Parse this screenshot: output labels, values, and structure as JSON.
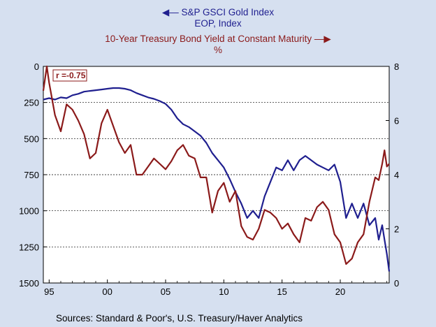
{
  "chart_data": {
    "type": "line",
    "legend": {
      "gold": {
        "name": "S&P GSCI Gold Index",
        "unit": "EOP, Index",
        "arrow": "left"
      },
      "yield": {
        "name": "10-Year Treasury Bond Yield at Constant Maturity",
        "unit": "%",
        "arrow": "right"
      }
    },
    "annotation": "r =-0.75",
    "source": "Sources:  Standard & Poor's, U.S. Treasury/Haver Analytics",
    "x_axis": {
      "range": [
        1994.5,
        2024.2
      ],
      "ticks": [
        1995,
        2000,
        2005,
        2010,
        2015,
        2020
      ],
      "tick_labels": [
        "95",
        "00",
        "05",
        "10",
        "15",
        "20"
      ]
    },
    "y_left": {
      "range": [
        0,
        1500
      ],
      "inverted": true,
      "ticks": [
        0,
        250,
        500,
        750,
        1000,
        1250,
        1500
      ],
      "tick_labels": [
        "0",
        "250",
        "500",
        "750",
        "1000",
        "1250",
        "1500"
      ]
    },
    "y_right": {
      "range": [
        0,
        8
      ],
      "ticks": [
        0,
        2,
        4,
        6,
        8
      ],
      "tick_labels": [
        "0",
        "2",
        "4",
        "6",
        "8"
      ]
    },
    "grid": {
      "horizontal_dashed": true
    },
    "colors": {
      "gold": "#1f1f8f",
      "yield": "#8b1a1a",
      "background": "#d6e0f0",
      "plot": "#ffffff"
    },
    "series": [
      {
        "name": "S&P GSCI Gold Index",
        "axis": "left",
        "x": [
          1994.5,
          1995,
          1995.5,
          1996,
          1996.5,
          1997,
          1997.5,
          1998,
          1998.5,
          1999,
          1999.5,
          2000,
          2000.5,
          2001,
          2001.5,
          2002,
          2002.5,
          2003,
          2003.5,
          2004,
          2004.5,
          2005,
          2005.5,
          2006,
          2006.5,
          2007,
          2007.5,
          2008,
          2008.5,
          2009,
          2009.5,
          2010,
          2010.5,
          2011,
          2011.5,
          2012,
          2012.5,
          2013,
          2013.5,
          2014,
          2014.5,
          2015,
          2015.5,
          2016,
          2016.5,
          2017,
          2017.5,
          2018,
          2018.5,
          2019,
          2019.5,
          2020,
          2020.5,
          2021,
          2021.5,
          2022,
          2022.5,
          2023,
          2023.3,
          2023.6,
          2023.8,
          2024,
          2024.2
        ],
        "values": [
          230,
          220,
          230,
          215,
          220,
          200,
          190,
          175,
          170,
          165,
          160,
          155,
          150,
          150,
          155,
          165,
          185,
          200,
          215,
          225,
          240,
          260,
          300,
          360,
          400,
          420,
          450,
          480,
          530,
          600,
          650,
          700,
          780,
          870,
          950,
          1050,
          1000,
          1050,
          900,
          800,
          700,
          720,
          650,
          720,
          650,
          620,
          650,
          680,
          700,
          720,
          680,
          800,
          1050,
          950,
          1050,
          950,
          1100,
          1050,
          1200,
          1100,
          1200,
          1300,
          1420
        ]
      },
      {
        "name": "10-Year Treasury Bond Yield at Constant Maturity",
        "axis": "right",
        "x": [
          1994.5,
          1994.8,
          1995,
          1995.5,
          1996,
          1996.5,
          1997,
          1997.5,
          1998,
          1998.5,
          1999,
          1999.5,
          2000,
          2000.5,
          2001,
          2001.5,
          2002,
          2002.5,
          2003,
          2003.5,
          2004,
          2004.5,
          2005,
          2005.5,
          2006,
          2006.5,
          2007,
          2007.5,
          2008,
          2008.5,
          2009,
          2009.5,
          2010,
          2010.5,
          2011,
          2011.5,
          2012,
          2012.5,
          2013,
          2013.5,
          2014,
          2014.5,
          2015,
          2015.5,
          2016,
          2016.5,
          2017,
          2017.5,
          2018,
          2018.5,
          2019,
          2019.5,
          2020,
          2020.5,
          2021,
          2021.5,
          2022,
          2022.5,
          2023,
          2023.3,
          2023.6,
          2023.8,
          2024,
          2024.2
        ],
        "values": [
          7.1,
          8.0,
          7.4,
          6.2,
          5.6,
          6.6,
          6.4,
          6.0,
          5.5,
          4.6,
          4.8,
          5.9,
          6.4,
          5.8,
          5.2,
          4.8,
          5.1,
          4.0,
          4.0,
          4.3,
          4.6,
          4.4,
          4.2,
          4.5,
          4.9,
          5.1,
          4.7,
          4.6,
          3.9,
          3.9,
          2.6,
          3.4,
          3.7,
          3.0,
          3.4,
          2.1,
          1.7,
          1.6,
          2.0,
          2.7,
          2.6,
          2.4,
          2.0,
          2.2,
          1.8,
          1.5,
          2.4,
          2.3,
          2.8,
          3.0,
          2.7,
          1.8,
          1.5,
          0.7,
          0.9,
          1.5,
          1.8,
          3.0,
          3.9,
          3.8,
          4.4,
          4.9,
          4.3,
          4.4
        ]
      }
    ]
  }
}
